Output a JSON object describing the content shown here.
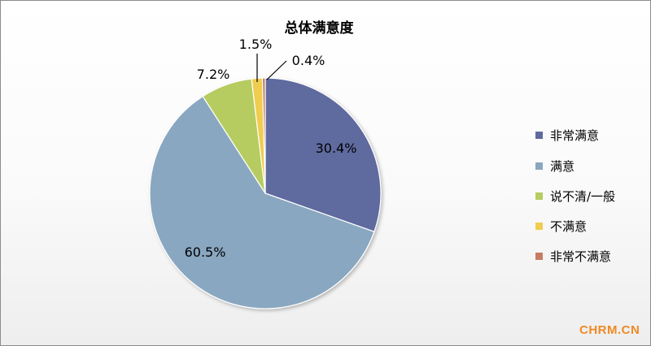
{
  "chart_data": {
    "type": "pie",
    "title": "总体满意度",
    "categories": [
      "非常满意",
      "满意",
      "说不清/一般",
      "不满意",
      "非常不满意"
    ],
    "values": [
      30.4,
      60.5,
      7.2,
      1.5,
      0.4
    ],
    "value_labels": [
      "30.4%",
      "60.5%",
      "7.2%",
      "1.5%",
      "0.4%"
    ],
    "colors": [
      "#5f6b9f",
      "#89a7c0",
      "#b7cc61",
      "#f0cc50",
      "#c67c62"
    ],
    "start_angle": "12 o'clock",
    "direction": "clockwise",
    "legend": {
      "placement": "right",
      "entries": [
        "非常满意",
        "满意",
        "说不清/一般",
        "不满意",
        "非常不满意"
      ]
    }
  },
  "watermark": {
    "text": "CHRM.CN",
    "color": "#f08a24"
  }
}
